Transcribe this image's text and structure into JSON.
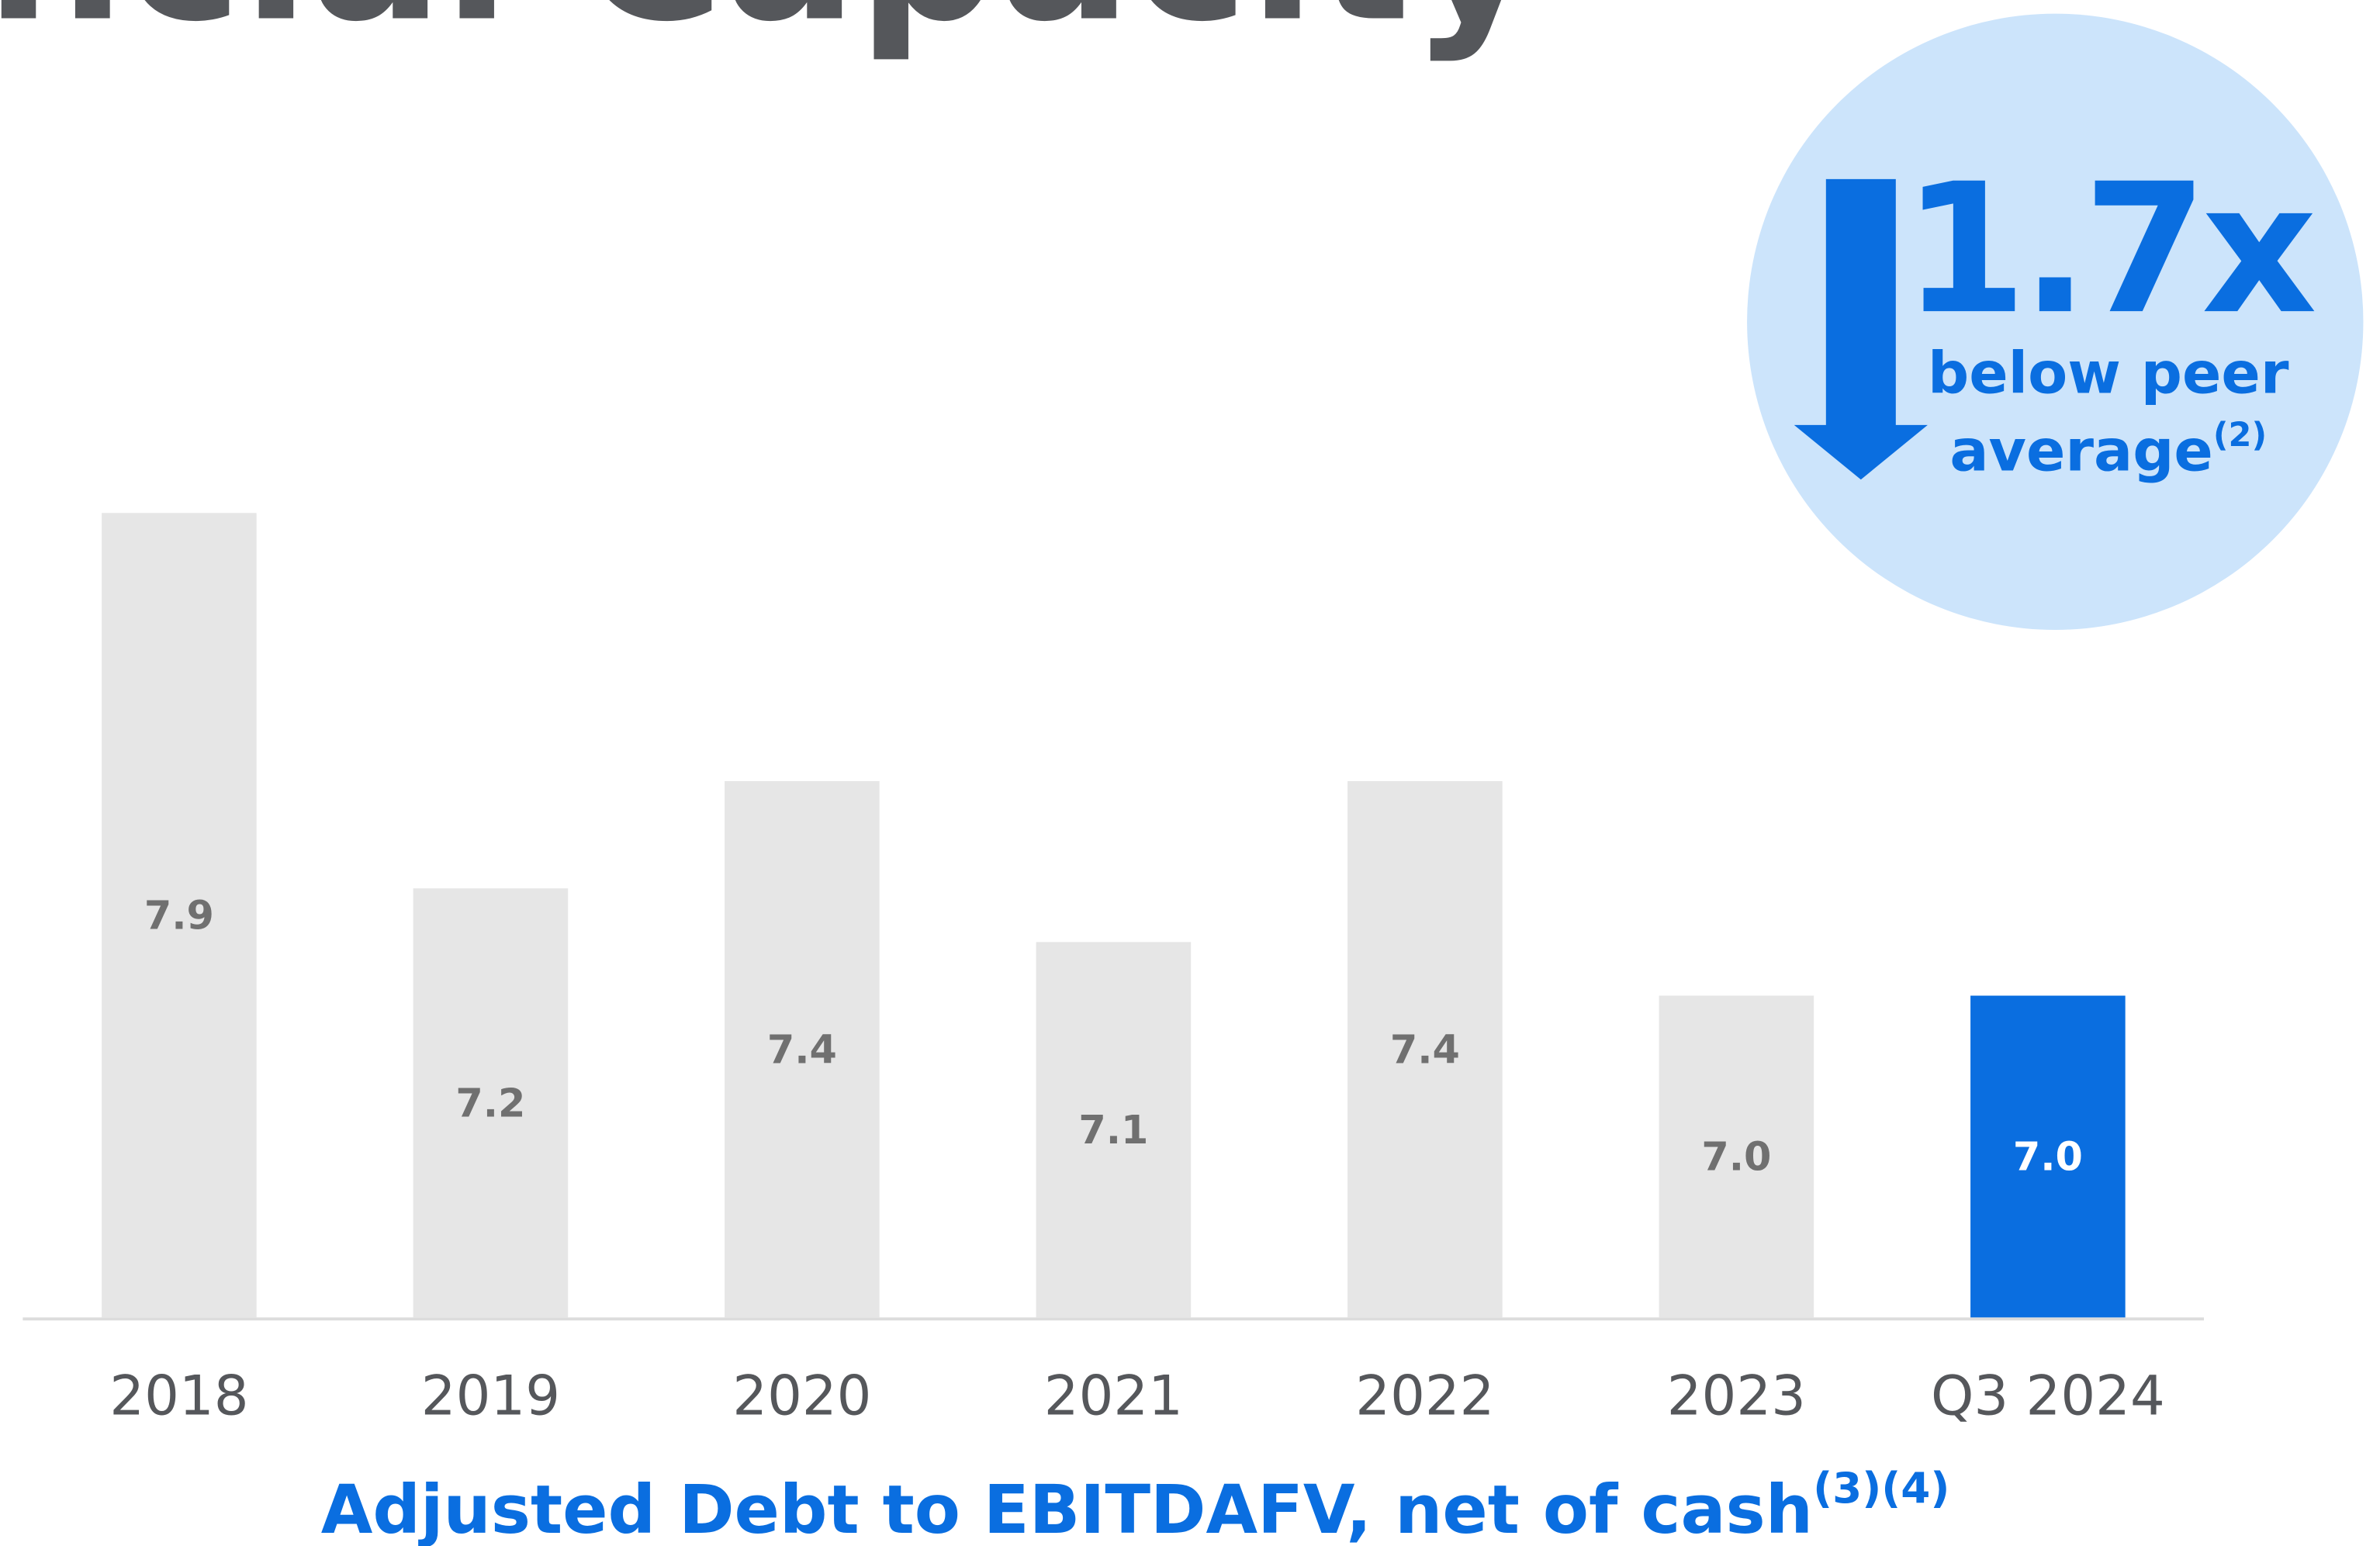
{
  "chart_data": {
    "type": "bar",
    "title": "ncial Capacity",
    "categories": [
      "2018",
      "2019",
      "2020",
      "2021",
      "2022",
      "2023",
      "Q3 2024"
    ],
    "values": [
      7.9,
      7.2,
      7.4,
      7.1,
      7.4,
      7.0,
      7.0
    ],
    "value_labels": [
      "7.9",
      "7.2",
      "7.4",
      "7.1",
      "7.4",
      "7.0",
      "7.0"
    ],
    "colors": [
      "#e6e6e6",
      "#e6e6e6",
      "#e6e6e6",
      "#e6e6e6",
      "#e6e6e6",
      "#e6e6e6",
      "#0a6ee0"
    ],
    "label_colors": [
      "#707070",
      "#707070",
      "#707070",
      "#707070",
      "#707070",
      "#707070",
      "#ffffff"
    ],
    "ylim": [
      6.4,
      8.0
    ],
    "x_label": "Adjusted Debt to EBITDAFV, net of cash",
    "x_label_note": "(3)(4)",
    "callout": {
      "headline": "1.7x",
      "lines": [
        "below peer",
        "average"
      ],
      "note": "(2)"
    }
  }
}
